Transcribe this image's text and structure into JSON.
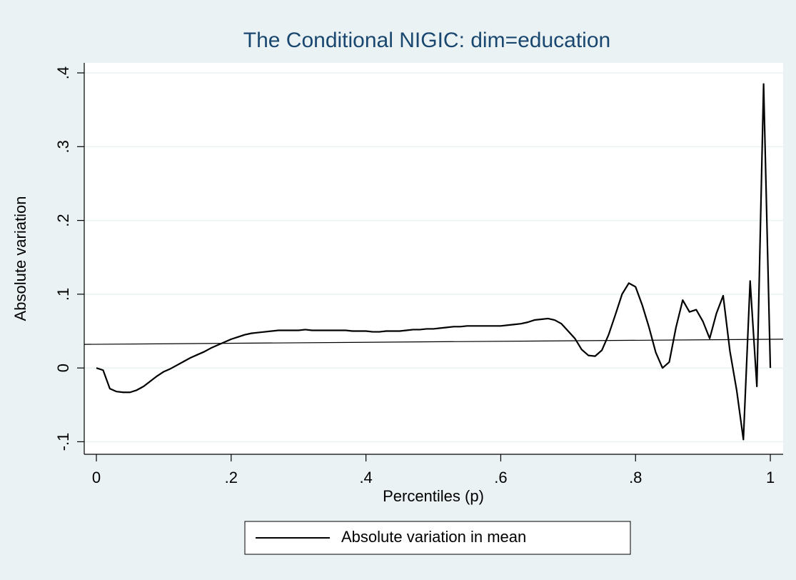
{
  "chart_data": {
    "type": "line",
    "title": "The Conditional NIGIC: dim=education",
    "xlabel": "Percentiles (p)",
    "ylabel": "Absolute variation",
    "xlim": [
      -0.018,
      1.019
    ],
    "ylim": [
      -0.117,
      0.4136
    ],
    "xticks": [
      0,
      {
        "value": 0.2,
        "label": ".2"
      },
      {
        "value": 0.4,
        "label": ".4"
      },
      {
        "value": 0.6,
        "label": ".6"
      },
      {
        "value": 0.8,
        "label": ".8"
      },
      1
    ],
    "yticks": [
      {
        "value": -0.1,
        "label": "-.1"
      },
      0,
      {
        "value": 0.1,
        "label": ".1"
      },
      {
        "value": 0.2,
        "label": ".2"
      },
      {
        "value": 0.3,
        "label": ".3"
      },
      {
        "value": 0.4,
        "label": ".4"
      }
    ],
    "grid": true,
    "legend": "bottom",
    "series": [
      {
        "name": "Absolute variation in mean",
        "color": "#000000",
        "x": [
          0,
          0.01,
          0.02,
          0.03,
          0.04,
          0.05,
          0.06,
          0.07,
          0.08,
          0.09,
          0.1,
          0.11,
          0.12,
          0.13,
          0.14,
          0.15,
          0.16,
          0.17,
          0.18,
          0.19,
          0.2,
          0.21,
          0.22,
          0.23,
          0.24,
          0.25,
          0.26,
          0.27,
          0.28,
          0.29,
          0.3,
          0.31,
          0.32,
          0.33,
          0.34,
          0.35,
          0.36,
          0.37,
          0.38,
          0.39,
          0.4,
          0.41,
          0.42,
          0.43,
          0.44,
          0.45,
          0.46,
          0.47,
          0.48,
          0.49,
          0.5,
          0.51,
          0.52,
          0.53,
          0.54,
          0.55,
          0.56,
          0.57,
          0.58,
          0.59,
          0.6,
          0.61,
          0.62,
          0.63,
          0.64,
          0.65,
          0.66,
          0.67,
          0.68,
          0.69,
          0.7,
          0.71,
          0.72,
          0.73,
          0.74,
          0.75,
          0.76,
          0.77,
          0.78,
          0.79,
          0.8,
          0.81,
          0.82,
          0.83,
          0.84,
          0.85,
          0.86,
          0.87,
          0.88,
          0.89,
          0.9,
          0.91,
          0.92,
          0.93,
          0.94,
          0.95,
          0.96,
          0.97,
          0.98,
          0.99,
          1
        ],
        "values": [
          0,
          -0.003,
          -0.028,
          -0.032,
          -0.033,
          -0.033,
          -0.03,
          -0.025,
          -0.018,
          -0.011,
          -0.005,
          -0.001,
          0.004,
          0.009,
          0.014,
          0.018,
          0.022,
          0.027,
          0.031,
          0.035,
          0.039,
          0.042,
          0.045,
          0.047,
          0.048,
          0.049,
          0.05,
          0.051,
          0.051,
          0.051,
          0.051,
          0.052,
          0.051,
          0.051,
          0.051,
          0.051,
          0.051,
          0.051,
          0.05,
          0.05,
          0.05,
          0.049,
          0.049,
          0.05,
          0.05,
          0.05,
          0.051,
          0.052,
          0.052,
          0.053,
          0.053,
          0.054,
          0.055,
          0.056,
          0.056,
          0.057,
          0.057,
          0.057,
          0.057,
          0.057,
          0.057,
          0.058,
          0.059,
          0.06,
          0.062,
          0.065,
          0.066,
          0.067,
          0.065,
          0.06,
          0.05,
          0.04,
          0.025,
          0.017,
          0.016,
          0.024,
          0.045,
          0.072,
          0.1,
          0.115,
          0.11,
          0.085,
          0.055,
          0.021,
          0,
          0.008,
          0.055,
          0.092,
          0.076,
          0.079,
          0.063,
          0.04,
          0.074,
          0.098,
          0.023,
          -0.03,
          -0.097,
          0.118,
          -0.025,
          0.385,
          0
        ]
      },
      {
        "color": "#000000",
        "x": [
          -0.018,
          1.019
        ],
        "values": [
          0.032,
          0.039
        ]
      }
    ]
  }
}
